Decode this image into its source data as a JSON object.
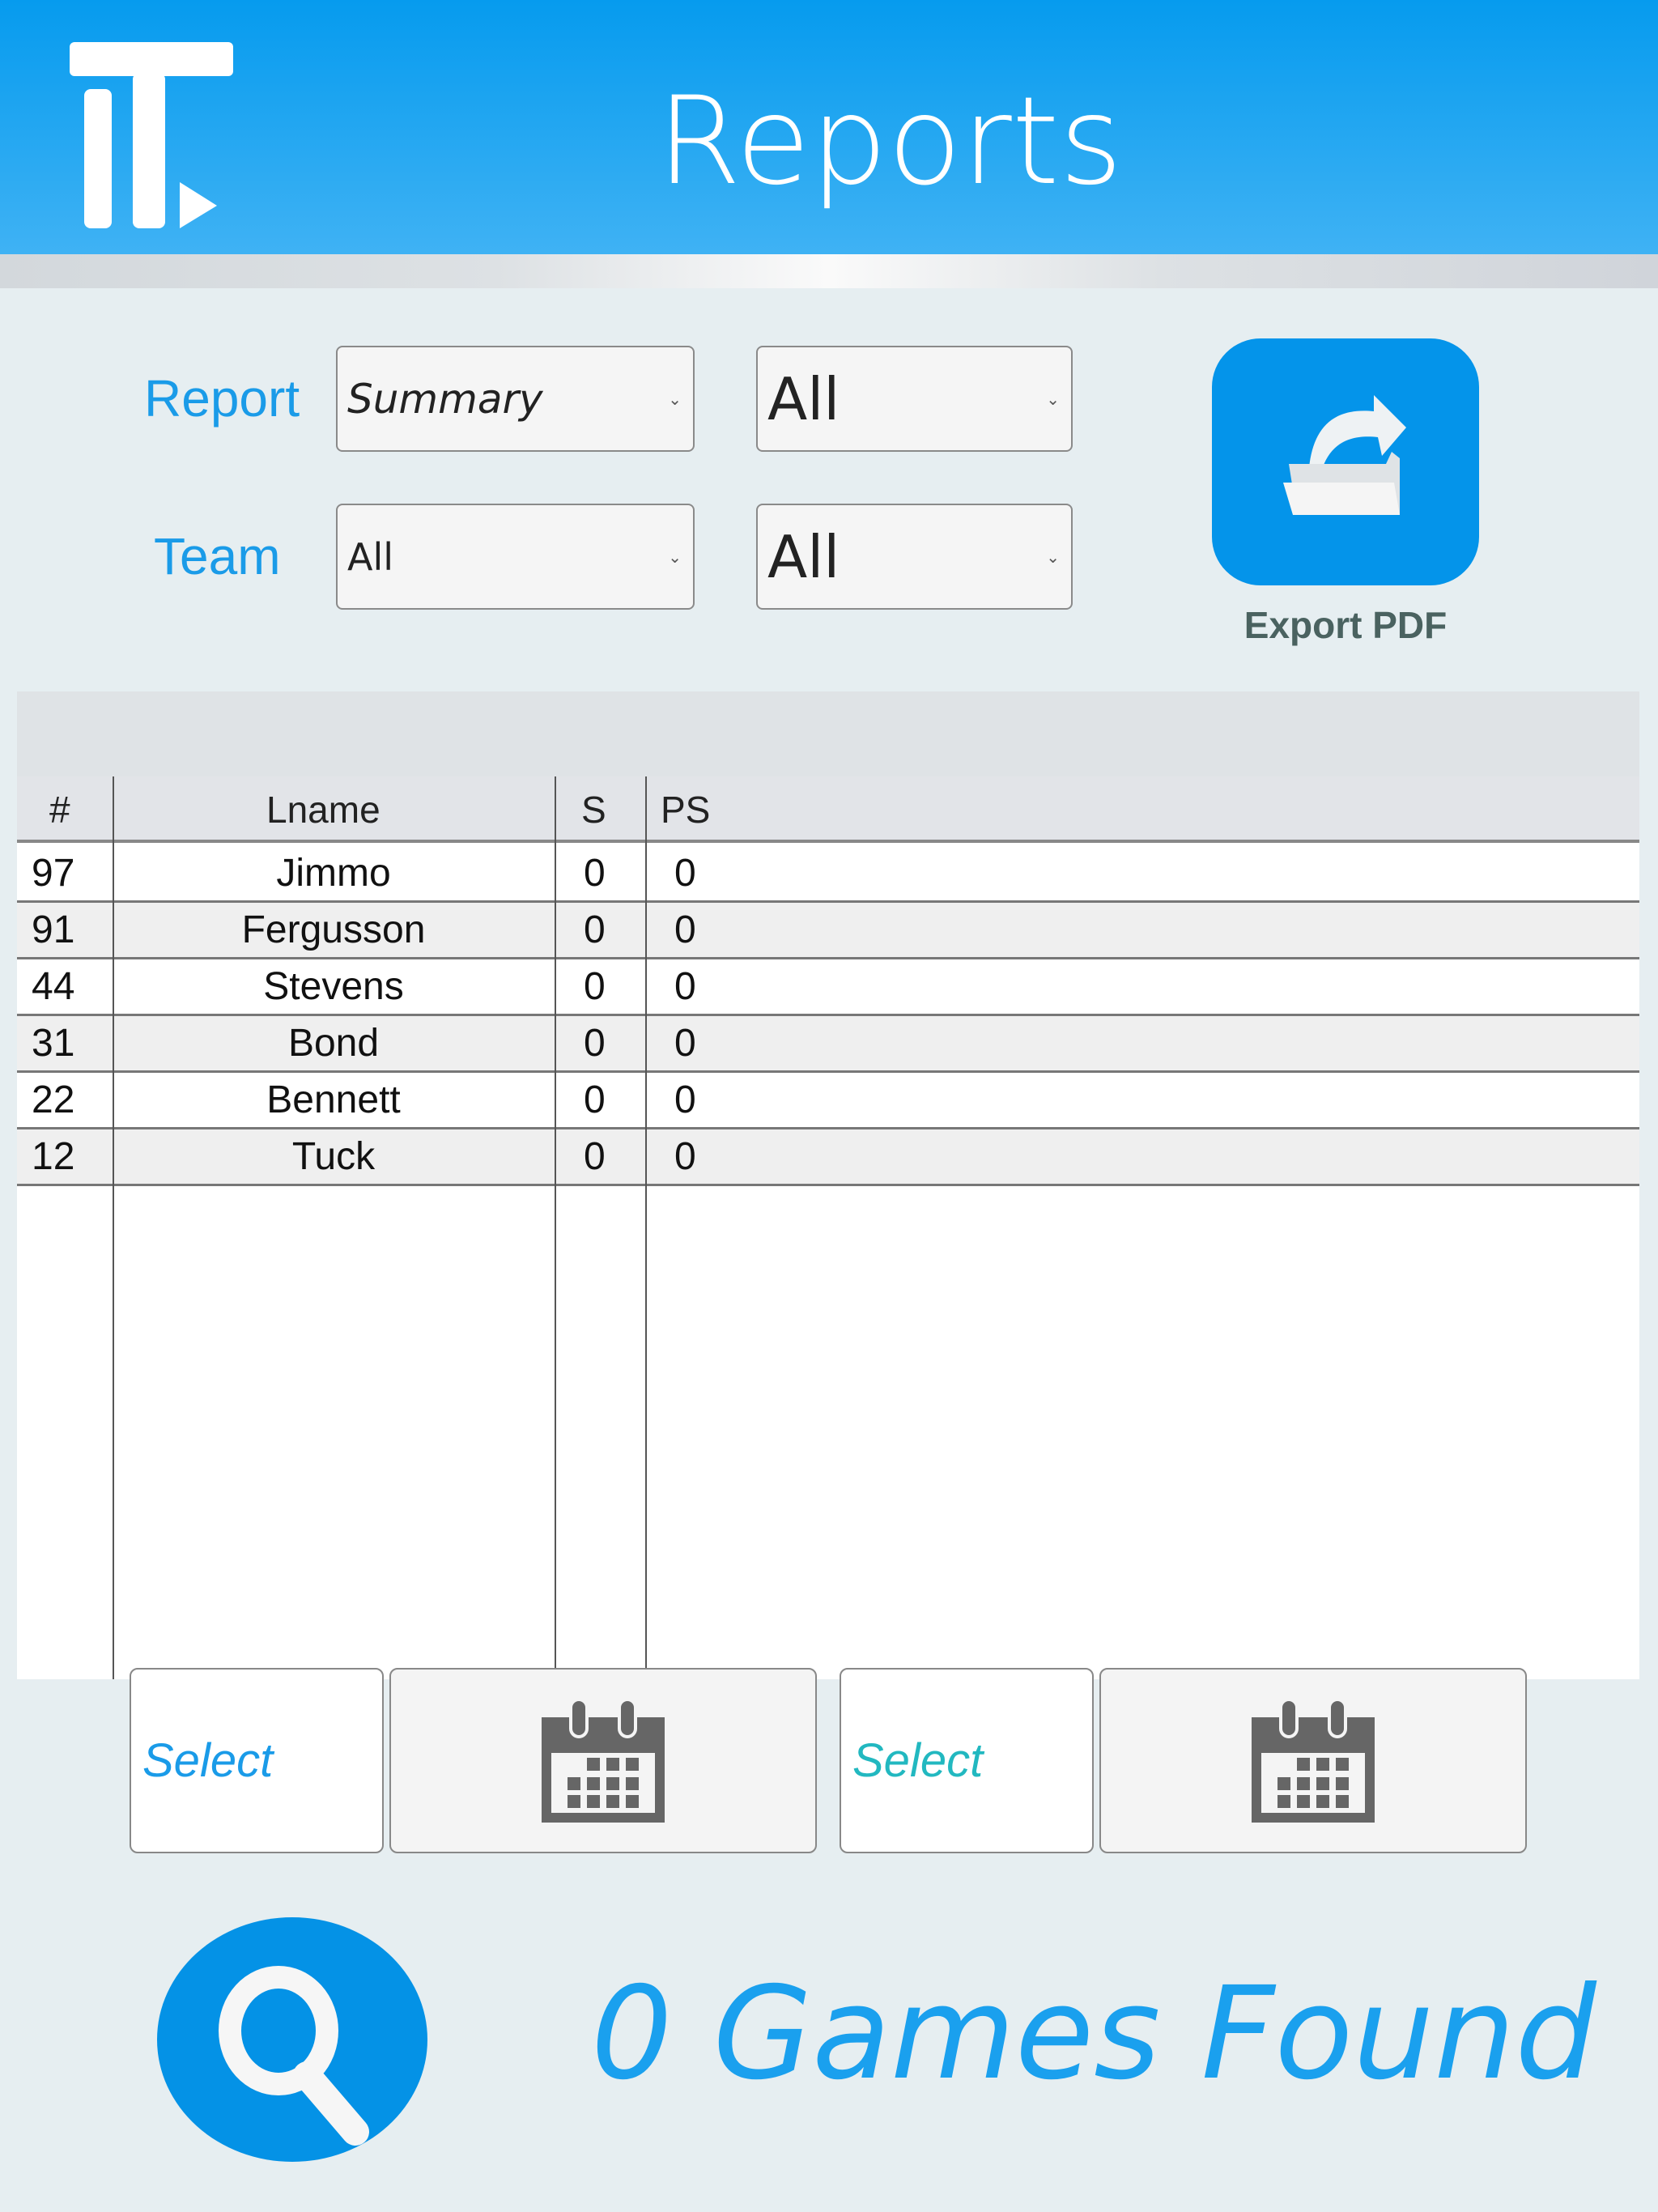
{
  "header": {
    "title": "Reports",
    "logo": "iT-logo",
    "color": "#069bee"
  },
  "filters": {
    "report_label": "Report",
    "team_label": "Team",
    "report_type": "Summary",
    "report_scope": "All",
    "team": "All",
    "team_scope": "All"
  },
  "export": {
    "label": "Export PDF",
    "icon": "folder-share-icon"
  },
  "table": {
    "columns": [
      "#",
      "Lname",
      "S",
      "PS"
    ],
    "rows": [
      {
        "num": "97",
        "lname": "Jimmo",
        "s": "0",
        "ps": "0"
      },
      {
        "num": "91",
        "lname": "Fergusson",
        "s": "0",
        "ps": "0"
      },
      {
        "num": "44",
        "lname": "Stevens",
        "s": "0",
        "ps": "0"
      },
      {
        "num": "31",
        "lname": "Bond",
        "s": "0",
        "ps": "0"
      },
      {
        "num": "22",
        "lname": "Bennett",
        "s": "0",
        "ps": "0"
      },
      {
        "num": "12",
        "lname": "Tuck",
        "s": "0",
        "ps": "0"
      }
    ]
  },
  "dates": {
    "start_label": "Select",
    "end_label": "Select",
    "start_color": "#1a9be8",
    "end_color": "#22b8c0",
    "icon": "calendar-icon"
  },
  "results": {
    "text": "0 Games Found",
    "icon": "search-icon"
  }
}
